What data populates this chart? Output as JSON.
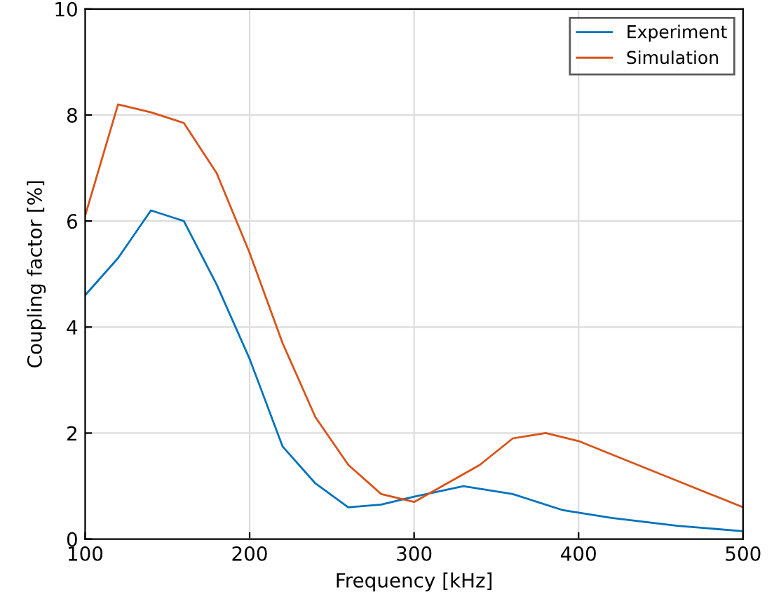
{
  "chart_data": {
    "type": "line",
    "xlabel": "Frequency [kHz]",
    "ylabel": "Coupling factor [%]",
    "xlim": [
      100,
      500
    ],
    "xticks": [
      100,
      200,
      300,
      400,
      500
    ],
    "ylim": [
      0,
      10
    ],
    "yticks": [
      0,
      2,
      4,
      6,
      8,
      10
    ],
    "grid": true,
    "legend": "top right",
    "line_style": "solid",
    "series": [
      {
        "name": "Experiment",
        "color": "#0072bd",
        "x": [
          100,
          120,
          140,
          160,
          180,
          200,
          220,
          240,
          260,
          280,
          300,
          330,
          360,
          390,
          420,
          460,
          500
        ],
        "values": [
          4.6,
          5.3,
          6.2,
          6.0,
          4.8,
          3.4,
          1.75,
          1.05,
          0.6,
          0.65,
          0.8,
          1.0,
          0.85,
          0.55,
          0.4,
          0.25,
          0.15
        ]
      },
      {
        "name": "Simulation",
        "color": "#d95319",
        "x": [
          100,
          120,
          140,
          160,
          180,
          200,
          220,
          240,
          260,
          280,
          300,
          340,
          360,
          380,
          400,
          420,
          460,
          500
        ],
        "values": [
          6.1,
          8.2,
          8.05,
          7.85,
          6.9,
          5.4,
          3.7,
          2.3,
          1.4,
          0.85,
          0.7,
          1.4,
          1.9,
          2.0,
          1.85,
          1.6,
          1.1,
          0.6
        ]
      }
    ]
  }
}
